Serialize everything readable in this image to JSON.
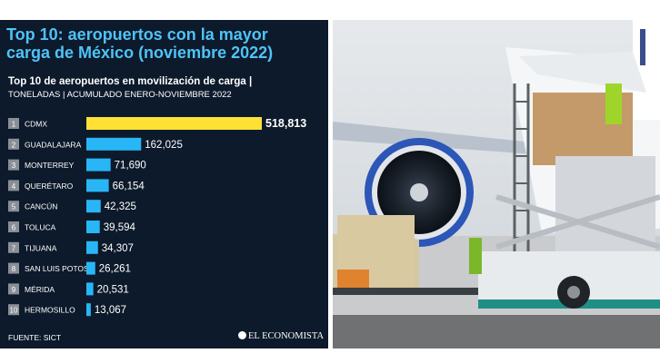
{
  "title_line1": "Top 10: aeropuertos con la mayor",
  "title_line2": "carga de México (noviembre 2022)",
  "subtitle": "Top 10 de aeropuertos en movilización de carga |",
  "subtitle2": "TONELADAS | ACUMULADO ENERO-NOVIEMBRE 2022",
  "source": "FUENTE: SICT",
  "logo": "EL ECONOMISTA",
  "colors": {
    "background": "#0c1a2b",
    "highlight_bar": "#ffe135",
    "bar": "#29b6f6",
    "title": "#4fc3f7",
    "rank_box": "#8a8f96"
  },
  "chart_data": {
    "type": "bar",
    "orientation": "horizontal",
    "ranks": [
      "1",
      "2",
      "3",
      "4",
      "5",
      "6",
      "7",
      "8",
      "9",
      "10"
    ],
    "categories": [
      "CDMX",
      "GUADALAJARA",
      "MONTERREY",
      "QUERÉTARO",
      "CANCÚN",
      "TOLUCA",
      "TIJUANA",
      "SAN LUIS POTOSÍ",
      "MÉRIDA",
      "HERMOSILLO"
    ],
    "values": [
      518813,
      162025,
      71690,
      66154,
      42325,
      39594,
      34307,
      26261,
      20531,
      13067
    ],
    "value_labels": [
      "518,813",
      "162,025",
      "71,690",
      "66,154",
      "42,325",
      "39,594",
      "34,307",
      "26,261",
      "20,531",
      "13,067"
    ],
    "highlight_index": 0
  },
  "photo": {
    "description_icon": "cargo-plane-loading-photo"
  }
}
